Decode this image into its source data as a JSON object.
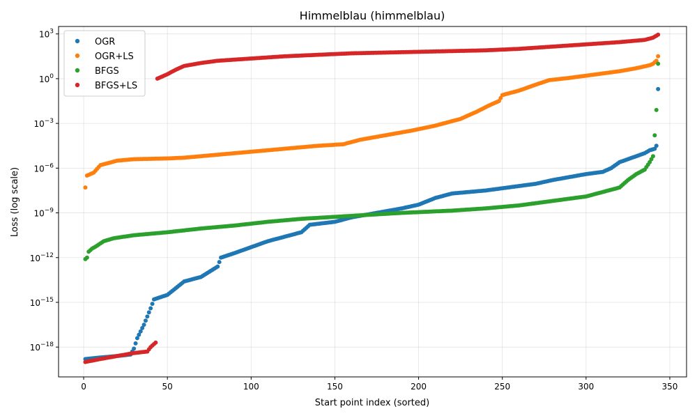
{
  "chart_data": {
    "type": "scatter",
    "title": "Himmelblau (himmelblau)",
    "xlabel": "Start point index (sorted)",
    "ylabel": "Loss (log scale)",
    "xlim": [
      -15,
      360
    ],
    "ylim_log10": [
      -20,
      3.5
    ],
    "y_scale": "log",
    "grid": true,
    "legend_position": "top-left",
    "x_ticks": [
      0,
      50,
      100,
      150,
      200,
      250,
      300,
      350
    ],
    "y_ticks": [
      {
        "exp": -18,
        "label": "10^-18"
      },
      {
        "exp": -15,
        "label": "10^-15"
      },
      {
        "exp": -12,
        "label": "10^-12"
      },
      {
        "exp": -9,
        "label": "10^-9"
      },
      {
        "exp": -6,
        "label": "10^-6"
      },
      {
        "exp": -3,
        "label": "10^-3"
      },
      {
        "exp": 0,
        "label": "10^0"
      },
      {
        "exp": 3,
        "label": "10^3"
      }
    ],
    "series": [
      {
        "name": "OGR",
        "color": "#1f77b4",
        "x_range": [
          1,
          343
        ],
        "log10_y_anchors": [
          [
            1,
            -18.8
          ],
          [
            10,
            -18.7
          ],
          [
            20,
            -18.6
          ],
          [
            28,
            -18.5
          ],
          [
            30,
            -18.1
          ],
          [
            32,
            -17.4
          ],
          [
            36,
            -16.5
          ],
          [
            40,
            -15.4
          ],
          [
            42,
            -14.8
          ],
          [
            50,
            -14.5
          ],
          [
            60,
            -13.6
          ],
          [
            70,
            -13.3
          ],
          [
            80,
            -12.6
          ],
          [
            82,
            -12.0
          ],
          [
            90,
            -11.7
          ],
          [
            95,
            -11.5
          ],
          [
            100,
            -11.3
          ],
          [
            110,
            -10.9
          ],
          [
            120,
            -10.6
          ],
          [
            130,
            -10.3
          ],
          [
            135,
            -9.8
          ],
          [
            150,
            -9.6
          ],
          [
            160,
            -9.3
          ],
          [
            175,
            -9.0
          ],
          [
            190,
            -8.7
          ],
          [
            200,
            -8.45
          ],
          [
            210,
            -8.0
          ],
          [
            220,
            -7.7
          ],
          [
            240,
            -7.5
          ],
          [
            250,
            -7.35
          ],
          [
            260,
            -7.2
          ],
          [
            270,
            -7.05
          ],
          [
            280,
            -6.8
          ],
          [
            290,
            -6.6
          ],
          [
            300,
            -6.4
          ],
          [
            310,
            -6.25
          ],
          [
            315,
            -6.0
          ],
          [
            320,
            -5.6
          ],
          [
            330,
            -5.2
          ],
          [
            335,
            -5.0
          ],
          [
            338,
            -4.8
          ],
          [
            341,
            -4.7
          ],
          [
            342,
            -4.5
          ],
          [
            343,
            -0.7
          ]
        ]
      },
      {
        "name": "OGR+LS",
        "color": "#ff7f0e",
        "x_range": [
          1,
          343
        ],
        "log10_y_anchors": [
          [
            1,
            -7.3
          ],
          [
            2,
            -6.5
          ],
          [
            6,
            -6.3
          ],
          [
            10,
            -5.8
          ],
          [
            20,
            -5.5
          ],
          [
            30,
            -5.4
          ],
          [
            50,
            -5.35
          ],
          [
            60,
            -5.3
          ],
          [
            80,
            -5.1
          ],
          [
            100,
            -4.9
          ],
          [
            120,
            -4.7
          ],
          [
            140,
            -4.5
          ],
          [
            155,
            -4.4
          ],
          [
            165,
            -4.1
          ],
          [
            180,
            -3.8
          ],
          [
            195,
            -3.5
          ],
          [
            210,
            -3.15
          ],
          [
            225,
            -2.7
          ],
          [
            235,
            -2.2
          ],
          [
            242,
            -1.8
          ],
          [
            248,
            -1.5
          ],
          [
            250,
            -1.1
          ],
          [
            260,
            -0.8
          ],
          [
            270,
            -0.4
          ],
          [
            278,
            -0.1
          ],
          [
            290,
            0.05
          ],
          [
            300,
            0.2
          ],
          [
            310,
            0.35
          ],
          [
            320,
            0.5
          ],
          [
            330,
            0.7
          ],
          [
            338,
            0.9
          ],
          [
            340,
            1.0
          ],
          [
            342,
            1.2
          ],
          [
            343,
            1.5
          ]
        ]
      },
      {
        "name": "BFGS",
        "color": "#2ca02c",
        "x_range": [
          1,
          343
        ],
        "log10_y_anchors": [
          [
            1,
            -12.1
          ],
          [
            2,
            -12.0
          ],
          [
            3,
            -11.6
          ],
          [
            5,
            -11.4
          ],
          [
            8,
            -11.2
          ],
          [
            12,
            -10.9
          ],
          [
            18,
            -10.7
          ],
          [
            30,
            -10.5
          ],
          [
            50,
            -10.3
          ],
          [
            70,
            -10.05
          ],
          [
            90,
            -9.85
          ],
          [
            110,
            -9.6
          ],
          [
            130,
            -9.4
          ],
          [
            160,
            -9.2
          ],
          [
            190,
            -9.0
          ],
          [
            220,
            -8.85
          ],
          [
            240,
            -8.7
          ],
          [
            260,
            -8.5
          ],
          [
            280,
            -8.2
          ],
          [
            300,
            -7.9
          ],
          [
            310,
            -7.6
          ],
          [
            320,
            -7.3
          ],
          [
            325,
            -6.8
          ],
          [
            330,
            -6.4
          ],
          [
            335,
            -6.1
          ],
          [
            338,
            -5.6
          ],
          [
            340,
            -5.2
          ],
          [
            341,
            -3.8
          ],
          [
            342,
            -2.1
          ],
          [
            343,
            1.0
          ]
        ]
      },
      {
        "name": "BFGS+LS",
        "color": "#d62728",
        "x_range": [
          1,
          343
        ],
        "log10_y_anchors": [
          [
            1,
            -19.0
          ],
          [
            10,
            -18.8
          ],
          [
            20,
            -18.6
          ],
          [
            30,
            -18.4
          ],
          [
            38,
            -18.3
          ],
          [
            40,
            -18.0
          ],
          [
            43,
            -17.7
          ],
          [
            44,
            0.0
          ],
          [
            50,
            0.3
          ],
          [
            55,
            0.6
          ],
          [
            60,
            0.85
          ],
          [
            70,
            1.05
          ],
          [
            80,
            1.2
          ],
          [
            100,
            1.35
          ],
          [
            120,
            1.5
          ],
          [
            140,
            1.6
          ],
          [
            160,
            1.7
          ],
          [
            180,
            1.75
          ],
          [
            200,
            1.8
          ],
          [
            220,
            1.85
          ],
          [
            240,
            1.9
          ],
          [
            260,
            2.0
          ],
          [
            280,
            2.15
          ],
          [
            300,
            2.3
          ],
          [
            320,
            2.45
          ],
          [
            335,
            2.6
          ],
          [
            340,
            2.75
          ],
          [
            343,
            2.95
          ]
        ]
      }
    ]
  }
}
